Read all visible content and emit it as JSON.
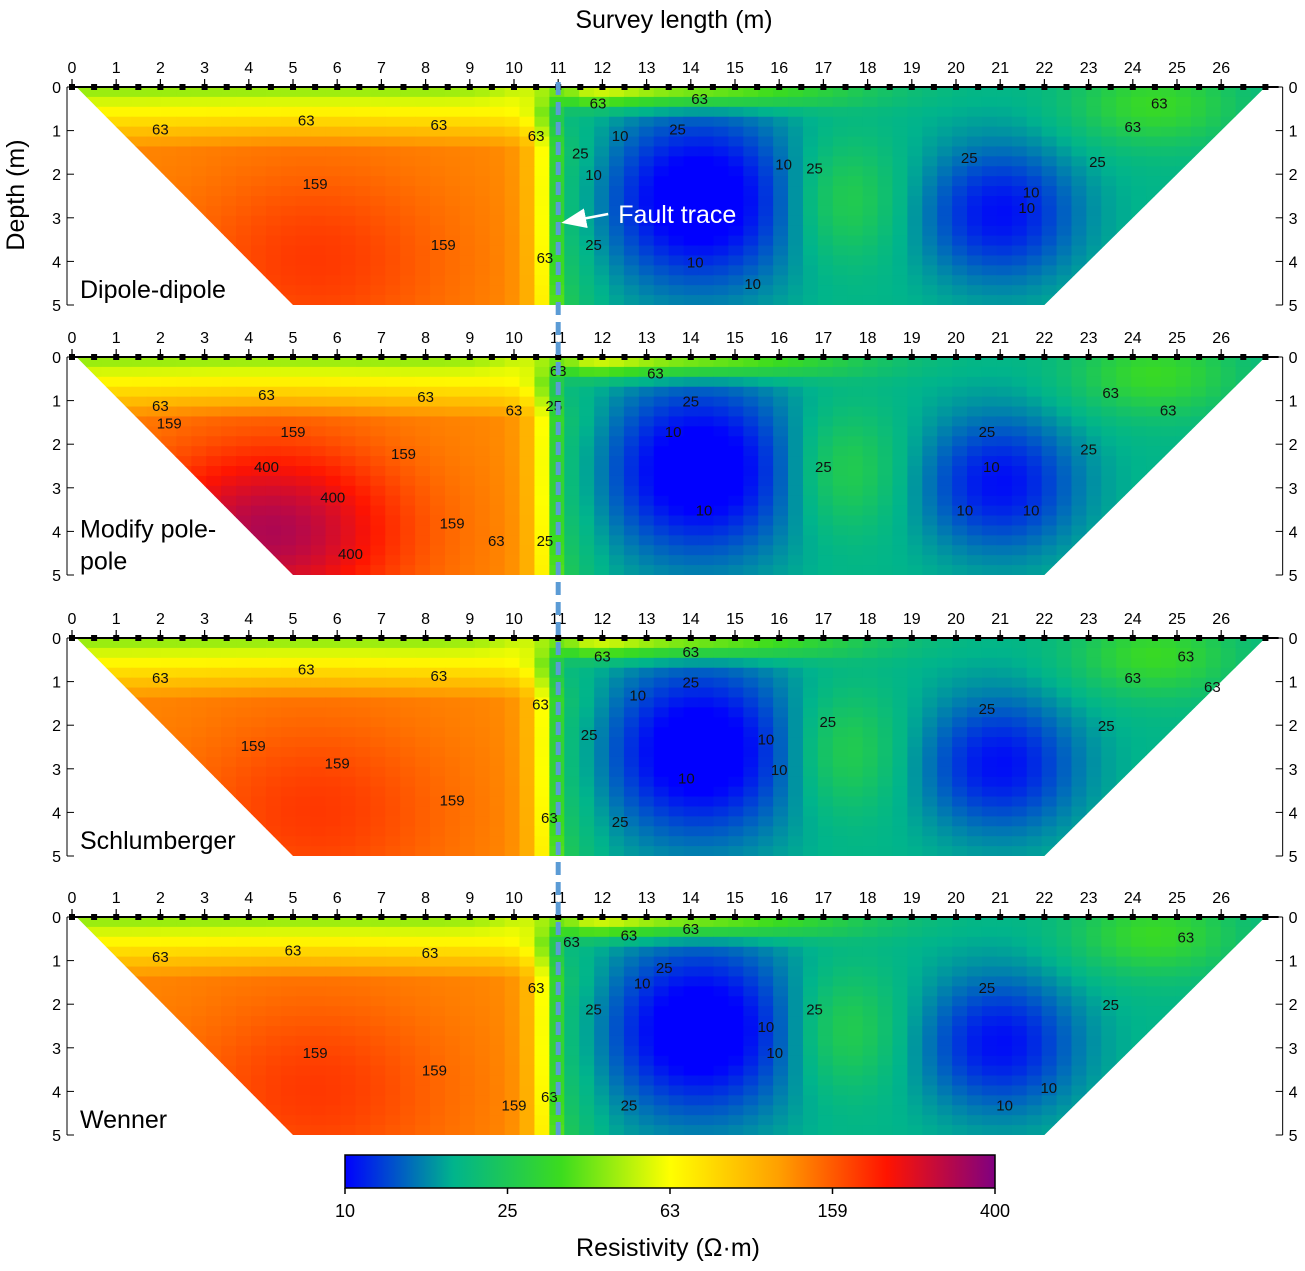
{
  "chart_data": {
    "type": "heatmap",
    "title": "",
    "xlabel": "Survey length (m)",
    "ylabel": "Depth (m)",
    "x_ticks": [
      0,
      1,
      2,
      3,
      4,
      5,
      6,
      7,
      8,
      9,
      10,
      11,
      12,
      13,
      14,
      15,
      16,
      17,
      18,
      19,
      20,
      21,
      22,
      23,
      24,
      25,
      26
    ],
    "y_ticks": [
      0,
      1,
      2,
      3,
      4,
      5
    ],
    "xlim": [
      0,
      27
    ],
    "ylim": [
      0,
      5
    ],
    "annotation": "Fault trace",
    "fault_trace_x": 11,
    "colorbar": {
      "label": "Resistivity (Ω·m)",
      "ticks": [
        "10",
        "25",
        "63",
        "159",
        "400"
      ],
      "colors": [
        "#0000ff",
        "#00b48c",
        "#3cdc1e",
        "#ffff00",
        "#ffa000",
        "#ff1400",
        "#800080"
      ],
      "scale": "log"
    },
    "panels": [
      {
        "name": "Dipole-dipole",
        "zone_edges": [
          0,
          1.15,
          2,
          2.5,
          3.2,
          3.6,
          4.1,
          4.9,
          5.6,
          6.6,
          8.6,
          10.5,
          11
        ],
        "contour_labels": [
          {
            "text": "63",
            "x": 2.0,
            "y": 0.95
          },
          {
            "text": "63",
            "x": 5.3,
            "y": 0.75
          },
          {
            "text": "63",
            "x": 8.3,
            "y": 0.85
          },
          {
            "text": "63",
            "x": 10.5,
            "y": 1.1
          },
          {
            "text": "63",
            "x": 10.7,
            "y": 3.9
          },
          {
            "text": "63",
            "x": 11.9,
            "y": 0.35
          },
          {
            "text": "63",
            "x": 14.2,
            "y": 0.25
          },
          {
            "text": "63",
            "x": 24.6,
            "y": 0.35
          },
          {
            "text": "63",
            "x": 24.0,
            "y": 0.9
          },
          {
            "text": "159",
            "x": 5.5,
            "y": 2.2
          },
          {
            "text": "159",
            "x": 8.4,
            "y": 3.6
          },
          {
            "text": "25",
            "x": 13.7,
            "y": 0.95
          },
          {
            "text": "25",
            "x": 11.5,
            "y": 1.5
          },
          {
            "text": "25",
            "x": 11.8,
            "y": 3.6
          },
          {
            "text": "25",
            "x": 16.8,
            "y": 1.85
          },
          {
            "text": "25",
            "x": 20.3,
            "y": 1.6
          },
          {
            "text": "25",
            "x": 23.2,
            "y": 1.7
          },
          {
            "text": "10",
            "x": 12.4,
            "y": 1.1
          },
          {
            "text": "10",
            "x": 11.8,
            "y": 2.0
          },
          {
            "text": "10",
            "x": 16.1,
            "y": 1.75
          },
          {
            "text": "10",
            "x": 14.1,
            "y": 4.0
          },
          {
            "text": "10",
            "x": 15.4,
            "y": 4.5
          },
          {
            "text": "10",
            "x": 21.7,
            "y": 2.4
          },
          {
            "text": "10",
            "x": 21.6,
            "y": 2.75
          }
        ]
      },
      {
        "name": "Modify pole-pole",
        "zone_edges": [
          0,
          0.95,
          1.3,
          1.7,
          2.4,
          3.5,
          4.7,
          6.3,
          8.8,
          10.3,
          10.9,
          11
        ],
        "contour_labels": [
          {
            "text": "63",
            "x": 2.0,
            "y": 1.1
          },
          {
            "text": "63",
            "x": 4.4,
            "y": 0.85
          },
          {
            "text": "63",
            "x": 8.0,
            "y": 0.9
          },
          {
            "text": "63",
            "x": 10.0,
            "y": 1.2
          },
          {
            "text": "63",
            "x": 9.6,
            "y": 4.2
          },
          {
            "text": "63",
            "x": 11.0,
            "y": 0.3
          },
          {
            "text": "63",
            "x": 13.2,
            "y": 0.35
          },
          {
            "text": "63",
            "x": 23.5,
            "y": 0.8
          },
          {
            "text": "63",
            "x": 24.8,
            "y": 1.2
          },
          {
            "text": "159",
            "x": 2.2,
            "y": 1.5
          },
          {
            "text": "159",
            "x": 5.0,
            "y": 1.7
          },
          {
            "text": "159",
            "x": 7.5,
            "y": 2.2
          },
          {
            "text": "159",
            "x": 8.6,
            "y": 3.8
          },
          {
            "text": "400",
            "x": 4.4,
            "y": 2.5
          },
          {
            "text": "400",
            "x": 5.9,
            "y": 3.2
          },
          {
            "text": "400",
            "x": 6.3,
            "y": 4.5
          },
          {
            "text": "25",
            "x": 10.9,
            "y": 1.1
          },
          {
            "text": "25",
            "x": 14.0,
            "y": 1.0
          },
          {
            "text": "25",
            "x": 17.0,
            "y": 2.5
          },
          {
            "text": "25",
            "x": 20.7,
            "y": 1.7
          },
          {
            "text": "25",
            "x": 23.0,
            "y": 2.1
          },
          {
            "text": "25",
            "x": 10.7,
            "y": 4.2
          },
          {
            "text": "10",
            "x": 13.6,
            "y": 1.7
          },
          {
            "text": "10",
            "x": 14.3,
            "y": 3.5
          },
          {
            "text": "10",
            "x": 20.8,
            "y": 2.5
          },
          {
            "text": "10",
            "x": 20.2,
            "y": 3.5
          },
          {
            "text": "10",
            "x": 21.7,
            "y": 3.5
          }
        ]
      },
      {
        "name": "Schlumberger",
        "zone_edges": [
          0,
          1.15,
          2,
          2.5,
          3.2,
          3.6,
          4.1,
          4.9,
          5.6,
          6.6,
          8.6,
          10.5,
          11
        ],
        "contour_labels": [
          {
            "text": "63",
            "x": 2.0,
            "y": 0.9
          },
          {
            "text": "63",
            "x": 5.3,
            "y": 0.7
          },
          {
            "text": "63",
            "x": 8.3,
            "y": 0.85
          },
          {
            "text": "63",
            "x": 10.6,
            "y": 1.5
          },
          {
            "text": "63",
            "x": 10.8,
            "y": 4.1
          },
          {
            "text": "63",
            "x": 12.0,
            "y": 0.4
          },
          {
            "text": "63",
            "x": 14.0,
            "y": 0.3
          },
          {
            "text": "63",
            "x": 25.2,
            "y": 0.4
          },
          {
            "text": "63",
            "x": 24.0,
            "y": 0.9
          },
          {
            "text": "63",
            "x": 25.8,
            "y": 1.1
          },
          {
            "text": "159",
            "x": 4.1,
            "y": 2.45
          },
          {
            "text": "159",
            "x": 6.0,
            "y": 2.85
          },
          {
            "text": "159",
            "x": 8.6,
            "y": 3.7
          },
          {
            "text": "25",
            "x": 14.0,
            "y": 1.0
          },
          {
            "text": "25",
            "x": 11.7,
            "y": 2.2
          },
          {
            "text": "25",
            "x": 12.4,
            "y": 4.2
          },
          {
            "text": "25",
            "x": 17.1,
            "y": 1.9
          },
          {
            "text": "25",
            "x": 20.7,
            "y": 1.6
          },
          {
            "text": "25",
            "x": 23.4,
            "y": 2.0
          },
          {
            "text": "10",
            "x": 12.8,
            "y": 1.3
          },
          {
            "text": "10",
            "x": 15.7,
            "y": 2.3
          },
          {
            "text": "10",
            "x": 16.0,
            "y": 3.0
          },
          {
            "text": "10",
            "x": 13.9,
            "y": 3.2
          }
        ]
      },
      {
        "name": "Wenner",
        "zone_edges": [
          0,
          1.15,
          2,
          2.5,
          3.2,
          3.6,
          4.1,
          4.9,
          5.6,
          6.6,
          8.6,
          10.5,
          11
        ],
        "contour_labels": [
          {
            "text": "63",
            "x": 2.0,
            "y": 0.9
          },
          {
            "text": "63",
            "x": 5.0,
            "y": 0.75
          },
          {
            "text": "63",
            "x": 8.1,
            "y": 0.8
          },
          {
            "text": "63",
            "x": 10.5,
            "y": 1.6
          },
          {
            "text": "63",
            "x": 10.8,
            "y": 4.1
          },
          {
            "text": "63",
            "x": 11.3,
            "y": 0.55
          },
          {
            "text": "63",
            "x": 12.6,
            "y": 0.4
          },
          {
            "text": "63",
            "x": 14.0,
            "y": 0.25
          },
          {
            "text": "63",
            "x": 25.2,
            "y": 0.45
          },
          {
            "text": "159",
            "x": 5.5,
            "y": 3.1
          },
          {
            "text": "159",
            "x": 8.2,
            "y": 3.5
          },
          {
            "text": "159",
            "x": 10.0,
            "y": 4.3
          },
          {
            "text": "25",
            "x": 13.4,
            "y": 1.15
          },
          {
            "text": "25",
            "x": 11.8,
            "y": 2.1
          },
          {
            "text": "25",
            "x": 12.6,
            "y": 4.3
          },
          {
            "text": "25",
            "x": 16.8,
            "y": 2.1
          },
          {
            "text": "25",
            "x": 20.7,
            "y": 1.6
          },
          {
            "text": "25",
            "x": 23.5,
            "y": 2.0
          },
          {
            "text": "10",
            "x": 12.9,
            "y": 1.5
          },
          {
            "text": "10",
            "x": 15.7,
            "y": 2.5
          },
          {
            "text": "10",
            "x": 15.9,
            "y": 3.1
          },
          {
            "text": "10",
            "x": 21.1,
            "y": 4.3
          },
          {
            "text": "10",
            "x": 22.1,
            "y": 3.9
          }
        ]
      }
    ]
  }
}
